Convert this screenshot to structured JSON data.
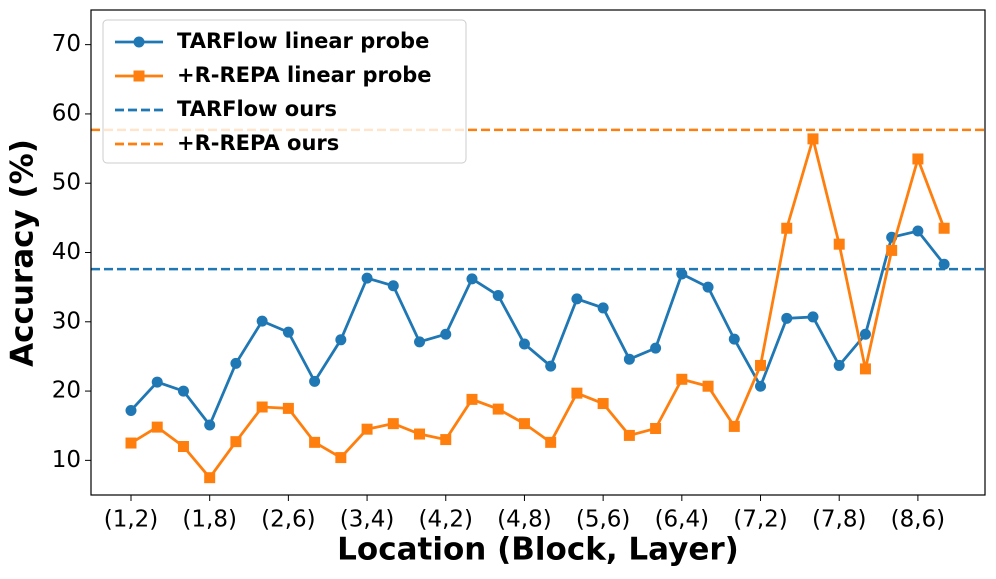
{
  "chart_data": {
    "type": "line",
    "xlabel": "Location (Block, Layer)",
    "ylabel": "Accuracy (%)",
    "categories": [
      "(1,2)",
      null,
      null,
      "(1,8)",
      null,
      null,
      "(2,6)",
      null,
      null,
      "(3,4)",
      null,
      null,
      "(4,2)",
      null,
      null,
      "(4,8)",
      null,
      null,
      "(5,6)",
      null,
      null,
      "(6,4)",
      null,
      null,
      "(7,2)",
      null,
      null,
      "(7,8)",
      null,
      null,
      "(8,6)",
      null
    ],
    "series": [
      {
        "name": "TARFlow linear probe",
        "color": "#1f77b4",
        "marker": "circle",
        "values": [
          17.2,
          21.3,
          20.0,
          15.1,
          24.0,
          30.1,
          28.5,
          21.4,
          27.4,
          36.3,
          35.2,
          27.1,
          28.2,
          36.2,
          33.8,
          26.8,
          23.6,
          33.3,
          32.0,
          24.6,
          26.2,
          36.9,
          35.0,
          27.5,
          20.7,
          30.5,
          30.7,
          23.7,
          28.2,
          42.2,
          43.1,
          38.3
        ]
      },
      {
        "name": "+R-REPA linear probe",
        "color": "#ff7f0e",
        "marker": "square",
        "values": [
          12.5,
          14.8,
          12.0,
          7.5,
          12.7,
          17.7,
          17.5,
          12.6,
          10.4,
          14.5,
          15.3,
          13.8,
          13.0,
          18.8,
          17.4,
          15.3,
          12.6,
          19.7,
          18.2,
          13.6,
          14.6,
          21.7,
          20.7,
          14.9,
          23.7,
          43.5,
          56.4,
          41.2,
          23.2,
          40.3,
          53.5,
          43.5
        ]
      }
    ],
    "hlines": [
      {
        "name": "TARFlow ours",
        "color": "#1f77b4",
        "value": 37.6
      },
      {
        "name": "+R-REPA ours",
        "color": "#ff7f0e",
        "value": 57.7
      }
    ],
    "ylim": [
      5,
      75
    ],
    "yticks": [
      10,
      20,
      30,
      40,
      50,
      60,
      70
    ],
    "legend": "upper left",
    "grid": false
  }
}
